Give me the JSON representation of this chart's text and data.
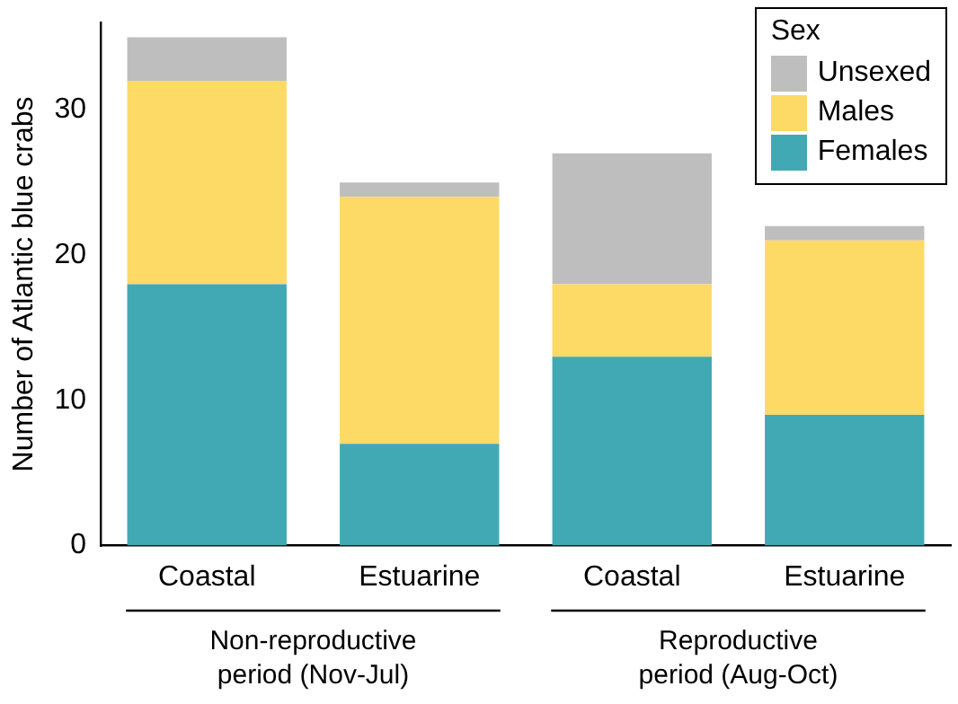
{
  "chart_data": {
    "type": "bar",
    "stacked": true,
    "ylabel": "Number of Atlantic blue crabs",
    "legend_title": "Sex",
    "legend": "top right",
    "grid": false,
    "categories": [
      "Coastal",
      "Estuarine",
      "Coastal",
      "Estuarine"
    ],
    "series": [
      {
        "name": "Females",
        "color": "#41a9b3",
        "values": [
          18,
          7,
          13,
          9
        ]
      },
      {
        "name": "Males",
        "color": "#fdd966",
        "values": [
          14,
          17,
          5,
          12
        ]
      },
      {
        "name": "Unsexed",
        "color": "#bebebe",
        "values": [
          3,
          1,
          9,
          1
        ]
      }
    ],
    "ylim": [
      0,
      36
    ],
    "yticks": [
      0,
      10,
      20,
      30
    ],
    "annotations": [
      "Non-reproductive\nperiod (Nov-Jul)",
      "Reproductive\nperiod (Aug-Oct)"
    ]
  }
}
